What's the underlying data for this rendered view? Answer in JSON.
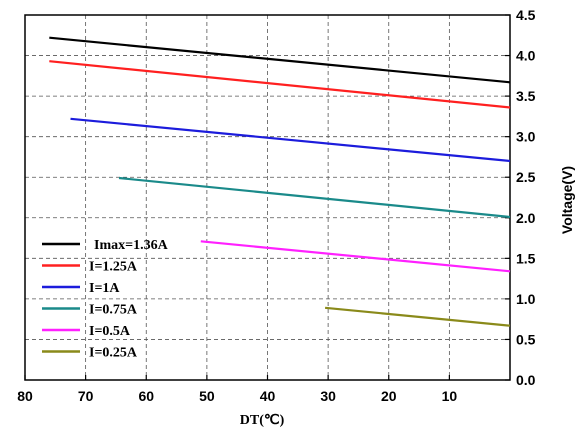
{
  "chart_data": {
    "type": "line",
    "xlabel": "DT(℃)",
    "ylabel": "Voltage(V)",
    "xlim": [
      80,
      0
    ],
    "ylim": [
      0,
      4.5
    ],
    "x_ticks": [
      "80",
      "70",
      "60",
      "50",
      "40",
      "30",
      "20",
      "10"
    ],
    "y_ticks": [
      "0.0",
      "0.5",
      "1.0",
      "1.5",
      "2.0",
      "2.5",
      "3.0",
      "3.5",
      "4.0",
      "4.5"
    ],
    "grid": "dashed",
    "y_axis_side": "right",
    "legend_position": "lower-left",
    "series": [
      {
        "name": "Imax=1.36A",
        "color": "#000000",
        "x": [
          76,
          0
        ],
        "y": [
          4.22,
          3.67
        ]
      },
      {
        "name": "I=1.25A",
        "color": "#ff2020",
        "x": [
          76,
          0
        ],
        "y": [
          3.93,
          3.36
        ]
      },
      {
        "name": "I=1A",
        "color": "#1c1cdc",
        "x": [
          72.5,
          0
        ],
        "y": [
          3.22,
          2.7
        ]
      },
      {
        "name": "I=0.75A",
        "color": "#1a8a8a",
        "x": [
          64.5,
          0
        ],
        "y": [
          2.49,
          2.01
        ]
      },
      {
        "name": "I=0.5A",
        "color": "#ff20ff",
        "x": [
          51,
          0
        ],
        "y": [
          1.71,
          1.34
        ]
      },
      {
        "name": "I=0.25A",
        "color": "#8a8a1a",
        "x": [
          30.5,
          0
        ],
        "y": [
          0.89,
          0.67
        ]
      }
    ]
  }
}
